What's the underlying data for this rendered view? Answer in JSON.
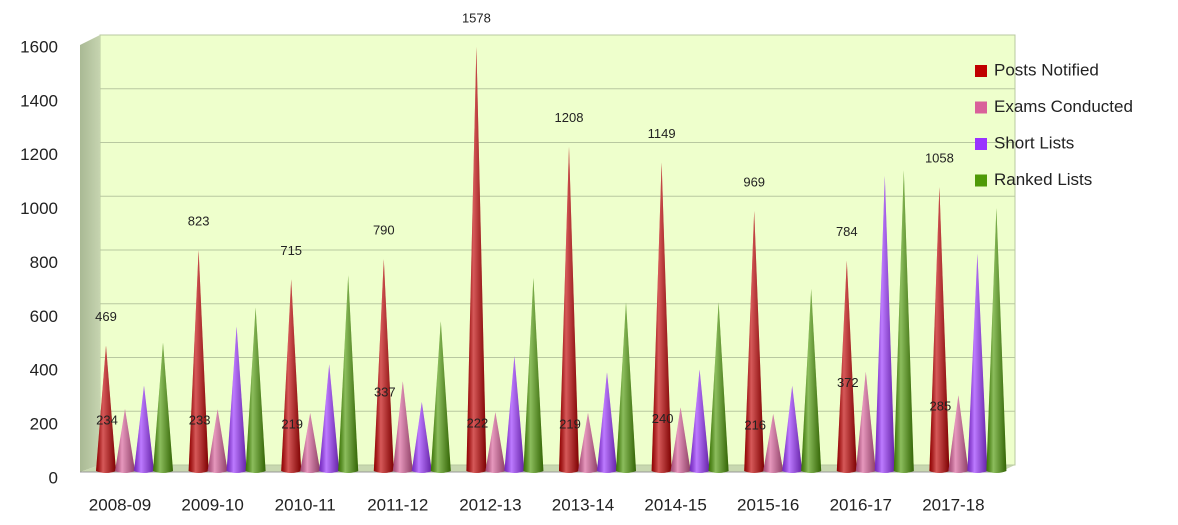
{
  "chart_data": {
    "type": "cone",
    "categories": [
      "2008-09",
      "2009-10",
      "2010-11",
      "2011-12",
      "2012-13",
      "2013-14",
      "2014-15",
      "2015-16",
      "2016-17",
      "2017-18"
    ],
    "series": [
      {
        "name": "Posts Notified",
        "color": "#c00000",
        "labels": true,
        "values": [
          469,
          823,
          715,
          790,
          1578,
          1208,
          1149,
          969,
          784,
          1058
        ]
      },
      {
        "name": "Exams Conducted",
        "color": "#d9609a",
        "labels": true,
        "values": [
          234,
          233,
          219,
          337,
          222,
          219,
          240,
          216,
          372,
          285
        ]
      },
      {
        "name": "Short Lists",
        "color": "#9933ff",
        "labels": false,
        "values": [
          320,
          540,
          400,
          260,
          430,
          370,
          380,
          320,
          1100,
          810
        ]
      },
      {
        "name": "Ranked Lists",
        "color": "#4e9a06",
        "labels": false,
        "values": [
          480,
          610,
          730,
          560,
          720,
          630,
          630,
          680,
          1120,
          980
        ]
      }
    ],
    "ylim": [
      0,
      1600
    ],
    "yticks": [
      0,
      200,
      400,
      600,
      800,
      1000,
      1200,
      1400,
      1600
    ],
    "grid": true,
    "legend": "right"
  }
}
